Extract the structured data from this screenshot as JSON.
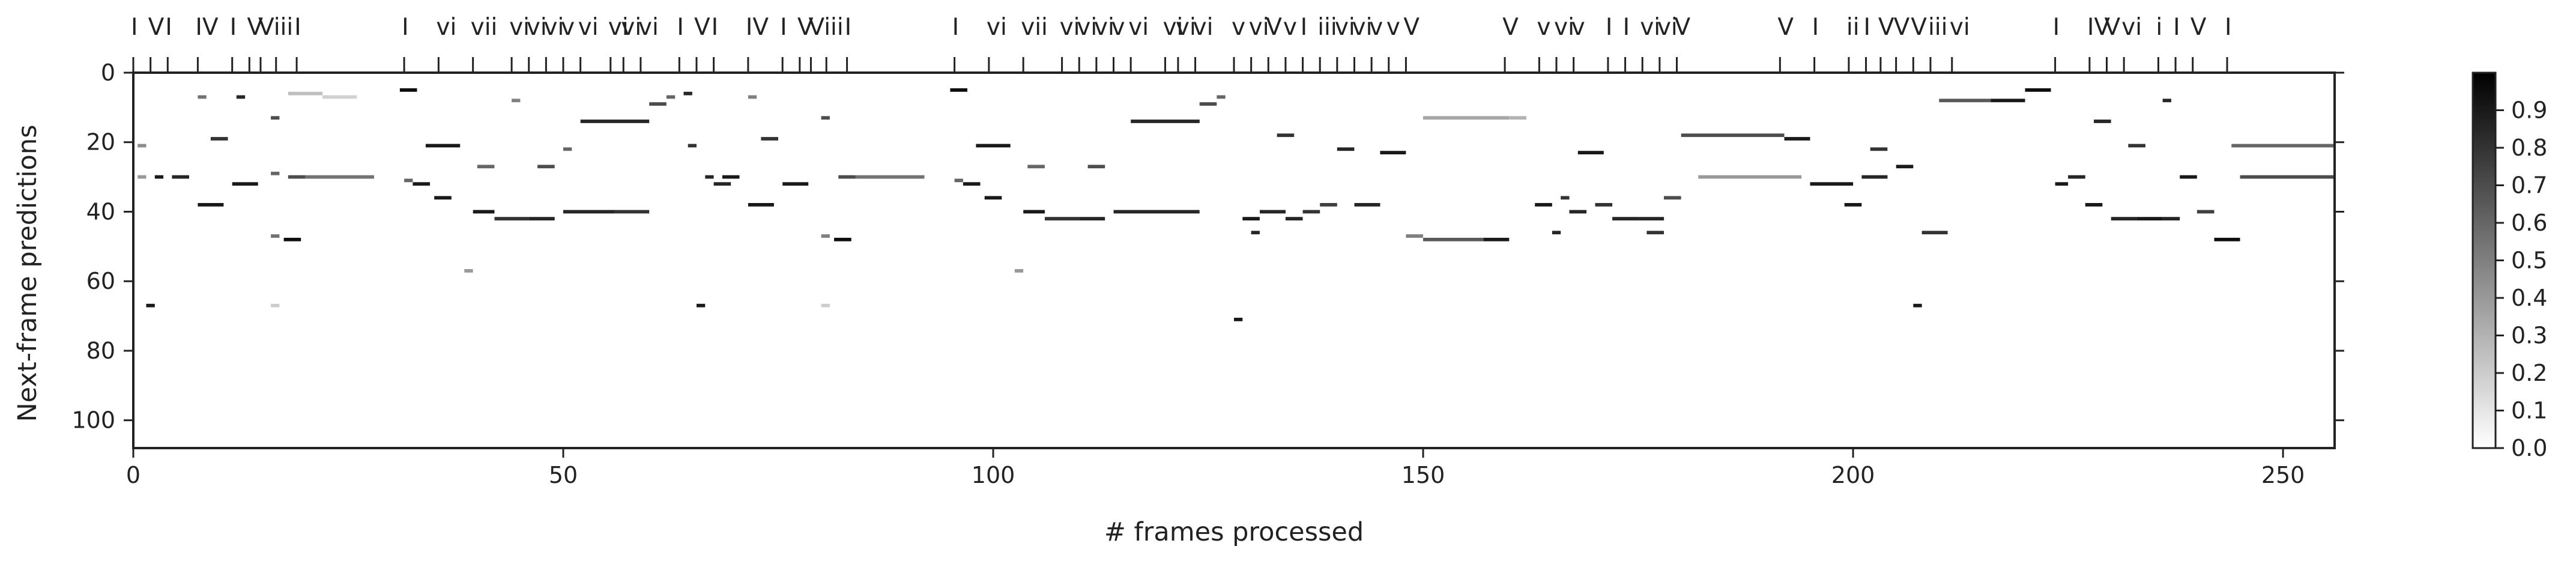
{
  "chart_data": {
    "type": "heatmap",
    "xlabel": "# frames processed",
    "ylabel": "Next-frame predictions",
    "xlim": [
      0,
      256
    ],
    "ylim": [
      0,
      108
    ],
    "y_inverted": true,
    "grid": false,
    "x_ticks": [
      {
        "value": 0,
        "label": "0"
      },
      {
        "value": 50,
        "label": "50"
      },
      {
        "value": 100,
        "label": "100"
      },
      {
        "value": 150,
        "label": "150"
      },
      {
        "value": 200,
        "label": "200"
      },
      {
        "value": 250,
        "label": "250"
      }
    ],
    "y_ticks": [
      {
        "value": 0,
        "label": "0"
      },
      {
        "value": 20,
        "label": "20"
      },
      {
        "value": 40,
        "label": "40"
      },
      {
        "value": 60,
        "label": "60"
      },
      {
        "value": 80,
        "label": "80"
      },
      {
        "value": 100,
        "label": "100"
      }
    ],
    "colormap": {
      "low": "#ffffff",
      "high": "#000000",
      "range": [
        0.0,
        1.0
      ]
    },
    "colorbar_ticks": [
      {
        "value": 0.0,
        "label": "0.0"
      },
      {
        "value": 0.1,
        "label": "0.1"
      },
      {
        "value": 0.2,
        "label": "0.2"
      },
      {
        "value": 0.3,
        "label": "0.3"
      },
      {
        "value": 0.4,
        "label": "0.4"
      },
      {
        "value": 0.5,
        "label": "0.5"
      },
      {
        "value": 0.6,
        "label": "0.6"
      },
      {
        "value": 0.7,
        "label": "0.7"
      },
      {
        "value": 0.8,
        "label": "0.8"
      },
      {
        "value": 0.9,
        "label": "0.9"
      }
    ],
    "chord_annotations": [
      {
        "frame": 0,
        "label": "I"
      },
      {
        "frame": 2,
        "label": "V"
      },
      {
        "frame": 4,
        "label": "I"
      },
      {
        "frame": 7.5,
        "label": "IV"
      },
      {
        "frame": 11.5,
        "label": "I"
      },
      {
        "frame": 13.5,
        "label": "V"
      },
      {
        "frame": 14.8,
        "label": "V"
      },
      {
        "frame": 16.6,
        "label": "iii"
      },
      {
        "frame": 19,
        "label": "I"
      },
      {
        "frame": 31.5,
        "label": "I"
      },
      {
        "frame": 35.5,
        "label": "vi"
      },
      {
        "frame": 39.5,
        "label": "vii"
      },
      {
        "frame": 44,
        "label": "vi"
      },
      {
        "frame": 46,
        "label": "vi"
      },
      {
        "frame": 48,
        "label": "vi"
      },
      {
        "frame": 50,
        "label": "v"
      },
      {
        "frame": 52,
        "label": "vi"
      },
      {
        "frame": 55.5,
        "label": "vi"
      },
      {
        "frame": 57,
        "label": "vi"
      },
      {
        "frame": 59,
        "label": "vi"
      },
      {
        "frame": 63.5,
        "label": "I"
      },
      {
        "frame": 65.5,
        "label": "V"
      },
      {
        "frame": 67.5,
        "label": "I"
      },
      {
        "frame": 71.5,
        "label": "IV"
      },
      {
        "frame": 75.5,
        "label": "I"
      },
      {
        "frame": 77.5,
        "label": "V"
      },
      {
        "frame": 78.8,
        "label": "V"
      },
      {
        "frame": 80.6,
        "label": "iii"
      },
      {
        "frame": 83,
        "label": "I"
      },
      {
        "frame": 95.5,
        "label": "I"
      },
      {
        "frame": 99.5,
        "label": "vi"
      },
      {
        "frame": 103.5,
        "label": "vii"
      },
      {
        "frame": 108,
        "label": "vi"
      },
      {
        "frame": 110,
        "label": "vi"
      },
      {
        "frame": 112,
        "label": "vi"
      },
      {
        "frame": 114,
        "label": "v"
      },
      {
        "frame": 116,
        "label": "vi"
      },
      {
        "frame": 120,
        "label": "vi"
      },
      {
        "frame": 121.5,
        "label": "vi"
      },
      {
        "frame": 123.5,
        "label": "vi"
      },
      {
        "frame": 128,
        "label": "v"
      },
      {
        "frame": 130,
        "label": "vi"
      },
      {
        "frame": 132,
        "label": "V"
      },
      {
        "frame": 134,
        "label": "v"
      },
      {
        "frame": 136,
        "label": "I"
      },
      {
        "frame": 138,
        "label": "iii"
      },
      {
        "frame": 140,
        "label": "vi"
      },
      {
        "frame": 142,
        "label": "vi"
      },
      {
        "frame": 144,
        "label": "v"
      },
      {
        "frame": 146,
        "label": "v"
      },
      {
        "frame": 148,
        "label": "V"
      },
      {
        "frame": 159.5,
        "label": "V"
      },
      {
        "frame": 163.5,
        "label": "v"
      },
      {
        "frame": 165.5,
        "label": "vi"
      },
      {
        "frame": 167.5,
        "label": "v"
      },
      {
        "frame": 171.5,
        "label": "I"
      },
      {
        "frame": 173.5,
        "label": "I"
      },
      {
        "frame": 175.5,
        "label": "vi"
      },
      {
        "frame": 177.5,
        "label": "vi"
      },
      {
        "frame": 179.5,
        "label": "V"
      },
      {
        "frame": 191.5,
        "label": "V"
      },
      {
        "frame": 195.5,
        "label": "I"
      },
      {
        "frame": 199.5,
        "label": "ii"
      },
      {
        "frame": 201.5,
        "label": "I"
      },
      {
        "frame": 203.2,
        "label": "V"
      },
      {
        "frame": 205,
        "label": "V"
      },
      {
        "frame": 207,
        "label": "V"
      },
      {
        "frame": 209,
        "label": "iii"
      },
      {
        "frame": 211.5,
        "label": "vi"
      },
      {
        "frame": 223.5,
        "label": "I"
      },
      {
        "frame": 227.5,
        "label": "IV"
      },
      {
        "frame": 229.5,
        "label": "V"
      },
      {
        "frame": 231.5,
        "label": "vi"
      },
      {
        "frame": 235.5,
        "label": "i"
      },
      {
        "frame": 237.5,
        "label": "I"
      },
      {
        "frame": 239.5,
        "label": "V"
      },
      {
        "frame": 243.5,
        "label": "I"
      }
    ],
    "prediction_segments": [
      {
        "x0": 31,
        "x1": 33,
        "y": 5,
        "v": 0.95
      },
      {
        "x0": 18,
        "x1": 22,
        "y": 6,
        "v": 0.25
      },
      {
        "x0": 22,
        "x1": 26,
        "y": 7,
        "v": 0.18
      },
      {
        "x0": 12,
        "x1": 13,
        "y": 7,
        "v": 0.85
      },
      {
        "x0": 7.5,
        "x1": 8.5,
        "y": 7,
        "v": 0.55
      },
      {
        "x0": 16,
        "x1": 17,
        "y": 13,
        "v": 0.7
      },
      {
        "x0": 9,
        "x1": 11,
        "y": 19,
        "v": 0.8
      },
      {
        "x0": 0.5,
        "x1": 1.5,
        "y": 21,
        "v": 0.45
      },
      {
        "x0": 0.5,
        "x1": 1.5,
        "y": 30,
        "v": 0.4
      },
      {
        "x0": 2.5,
        "x1": 3.5,
        "y": 30,
        "v": 0.9
      },
      {
        "x0": 4.5,
        "x1": 6.5,
        "y": 30,
        "v": 0.85
      },
      {
        "x0": 18,
        "x1": 20,
        "y": 30,
        "v": 0.7
      },
      {
        "x0": 20,
        "x1": 28,
        "y": 30,
        "v": 0.55
      },
      {
        "x0": 11.5,
        "x1": 14.5,
        "y": 32,
        "v": 0.9
      },
      {
        "x0": 16,
        "x1": 17,
        "y": 29,
        "v": 0.6
      },
      {
        "x0": 7.5,
        "x1": 10.5,
        "y": 38,
        "v": 0.9
      },
      {
        "x0": 16,
        "x1": 17,
        "y": 47,
        "v": 0.55
      },
      {
        "x0": 17.5,
        "x1": 19.5,
        "y": 48,
        "v": 0.95
      },
      {
        "x0": 1.5,
        "x1": 2.5,
        "y": 67,
        "v": 0.9
      },
      {
        "x0": 16,
        "x1": 17,
        "y": 67,
        "v": 0.2
      },
      {
        "x0": 31.5,
        "x1": 32.5,
        "y": 31,
        "v": 0.6
      },
      {
        "x0": 32.5,
        "x1": 34.5,
        "y": 32,
        "v": 0.9
      },
      {
        "x0": 34,
        "x1": 38,
        "y": 21,
        "v": 0.9
      },
      {
        "x0": 35,
        "x1": 37,
        "y": 36,
        "v": 0.9
      },
      {
        "x0": 39.5,
        "x1": 42,
        "y": 40,
        "v": 0.9
      },
      {
        "x0": 40,
        "x1": 42,
        "y": 27,
        "v": 0.6
      },
      {
        "x0": 38.5,
        "x1": 39.5,
        "y": 57,
        "v": 0.4
      },
      {
        "x0": 42,
        "x1": 46,
        "y": 42,
        "v": 0.8
      },
      {
        "x0": 44,
        "x1": 45,
        "y": 8,
        "v": 0.5
      },
      {
        "x0": 46,
        "x1": 49,
        "y": 42,
        "v": 0.85
      },
      {
        "x0": 47,
        "x1": 49,
        "y": 27,
        "v": 0.7
      },
      {
        "x0": 50,
        "x1": 56,
        "y": 40,
        "v": 0.85
      },
      {
        "x0": 56,
        "x1": 60,
        "y": 40,
        "v": 0.8
      },
      {
        "x0": 52,
        "x1": 56,
        "y": 14,
        "v": 0.85
      },
      {
        "x0": 56,
        "x1": 60,
        "y": 14,
        "v": 0.85
      },
      {
        "x0": 50,
        "x1": 51,
        "y": 22,
        "v": 0.6
      },
      {
        "x0": 60,
        "x1": 62,
        "y": 9,
        "v": 0.7
      },
      {
        "x0": 62,
        "x1": 63,
        "y": 7,
        "v": 0.6
      },
      {
        "x0": 64,
        "x1": 65,
        "y": 6,
        "v": 0.85
      },
      {
        "x0": 64.5,
        "x1": 65.5,
        "y": 21,
        "v": 0.8
      },
      {
        "x0": 65.5,
        "x1": 66.5,
        "y": 67,
        "v": 0.9
      },
      {
        "x0": 66.5,
        "x1": 67.5,
        "y": 30,
        "v": 0.85
      },
      {
        "x0": 68.5,
        "x1": 70.5,
        "y": 30,
        "v": 0.9
      },
      {
        "x0": 67.5,
        "x1": 69.5,
        "y": 32,
        "v": 0.85
      },
      {
        "x0": 71.5,
        "x1": 74.5,
        "y": 38,
        "v": 0.9
      },
      {
        "x0": 71.5,
        "x1": 72.5,
        "y": 7,
        "v": 0.5
      },
      {
        "x0": 73,
        "x1": 75,
        "y": 19,
        "v": 0.8
      },
      {
        "x0": 75.5,
        "x1": 78.5,
        "y": 32,
        "v": 0.9
      },
      {
        "x0": 80,
        "x1": 81,
        "y": 13,
        "v": 0.7
      },
      {
        "x0": 80,
        "x1": 81,
        "y": 47,
        "v": 0.5
      },
      {
        "x0": 81.5,
        "x1": 83.5,
        "y": 48,
        "v": 0.95
      },
      {
        "x0": 82,
        "x1": 84,
        "y": 30,
        "v": 0.7
      },
      {
        "x0": 84,
        "x1": 92,
        "y": 30,
        "v": 0.55
      },
      {
        "x0": 80,
        "x1": 81,
        "y": 67,
        "v": 0.2
      },
      {
        "x0": 95,
        "x1": 97,
        "y": 5,
        "v": 0.95
      },
      {
        "x0": 95.5,
        "x1": 96.5,
        "y": 31,
        "v": 0.6
      },
      {
        "x0": 96.5,
        "x1": 98.5,
        "y": 32,
        "v": 0.9
      },
      {
        "x0": 98,
        "x1": 102,
        "y": 21,
        "v": 0.9
      },
      {
        "x0": 99,
        "x1": 101,
        "y": 36,
        "v": 0.9
      },
      {
        "x0": 103.5,
        "x1": 106,
        "y": 40,
        "v": 0.9
      },
      {
        "x0": 104,
        "x1": 106,
        "y": 27,
        "v": 0.6
      },
      {
        "x0": 102.5,
        "x1": 103.5,
        "y": 57,
        "v": 0.4
      },
      {
        "x0": 106,
        "x1": 110,
        "y": 42,
        "v": 0.8
      },
      {
        "x0": 110,
        "x1": 113,
        "y": 42,
        "v": 0.85
      },
      {
        "x0": 111,
        "x1": 113,
        "y": 27,
        "v": 0.7
      },
      {
        "x0": 114,
        "x1": 124,
        "y": 40,
        "v": 0.85
      },
      {
        "x0": 116,
        "x1": 124,
        "y": 14,
        "v": 0.85
      },
      {
        "x0": 124,
        "x1": 126,
        "y": 9,
        "v": 0.7
      },
      {
        "x0": 126,
        "x1": 127,
        "y": 7,
        "v": 0.6
      },
      {
        "x0": 128,
        "x1": 129,
        "y": 71,
        "v": 0.9
      },
      {
        "x0": 129,
        "x1": 131,
        "y": 42,
        "v": 0.9
      },
      {
        "x0": 130,
        "x1": 131,
        "y": 46,
        "v": 0.85
      },
      {
        "x0": 131,
        "x1": 134,
        "y": 40,
        "v": 0.85
      },
      {
        "x0": 133,
        "x1": 135,
        "y": 18,
        "v": 0.8
      },
      {
        "x0": 134,
        "x1": 136,
        "y": 42,
        "v": 0.85
      },
      {
        "x0": 136,
        "x1": 138,
        "y": 40,
        "v": 0.8
      },
      {
        "x0": 138,
        "x1": 140,
        "y": 38,
        "v": 0.75
      },
      {
        "x0": 140,
        "x1": 142,
        "y": 22,
        "v": 0.85
      },
      {
        "x0": 142,
        "x1": 145,
        "y": 38,
        "v": 0.85
      },
      {
        "x0": 145,
        "x1": 148,
        "y": 23,
        "v": 0.9
      },
      {
        "x0": 148,
        "x1": 150,
        "y": 47,
        "v": 0.5
      },
      {
        "x0": 150,
        "x1": 157,
        "y": 48,
        "v": 0.65
      },
      {
        "x0": 157,
        "x1": 160,
        "y": 48,
        "v": 0.9
      },
      {
        "x0": 150,
        "x1": 160,
        "y": 13,
        "v": 0.35
      },
      {
        "x0": 160,
        "x1": 162,
        "y": 13,
        "v": 0.3
      },
      {
        "x0": 163,
        "x1": 165,
        "y": 38,
        "v": 0.9
      },
      {
        "x0": 165,
        "x1": 166,
        "y": 46,
        "v": 0.85
      },
      {
        "x0": 166,
        "x1": 167,
        "y": 36,
        "v": 0.8
      },
      {
        "x0": 167,
        "x1": 169,
        "y": 40,
        "v": 0.85
      },
      {
        "x0": 168,
        "x1": 171,
        "y": 23,
        "v": 0.9
      },
      {
        "x0": 170,
        "x1": 172,
        "y": 38,
        "v": 0.8
      },
      {
        "x0": 172,
        "x1": 175,
        "y": 42,
        "v": 0.85
      },
      {
        "x0": 175,
        "x1": 178,
        "y": 42,
        "v": 0.85
      },
      {
        "x0": 176,
        "x1": 178,
        "y": 46,
        "v": 0.8
      },
      {
        "x0": 178,
        "x1": 180,
        "y": 36,
        "v": 0.7
      },
      {
        "x0": 180,
        "x1": 192,
        "y": 18,
        "v": 0.7
      },
      {
        "x0": 182,
        "x1": 194,
        "y": 30,
        "v": 0.4
      },
      {
        "x0": 192,
        "x1": 195,
        "y": 19,
        "v": 0.9
      },
      {
        "x0": 195,
        "x1": 200,
        "y": 32,
        "v": 0.9
      },
      {
        "x0": 199,
        "x1": 201,
        "y": 38,
        "v": 0.9
      },
      {
        "x0": 201,
        "x1": 204,
        "y": 30,
        "v": 0.85
      },
      {
        "x0": 202,
        "x1": 204,
        "y": 22,
        "v": 0.8
      },
      {
        "x0": 205,
        "x1": 207,
        "y": 27,
        "v": 0.9
      },
      {
        "x0": 207,
        "x1": 208,
        "y": 67,
        "v": 0.9
      },
      {
        "x0": 208,
        "x1": 211,
        "y": 46,
        "v": 0.8
      },
      {
        "x0": 210,
        "x1": 216,
        "y": 8,
        "v": 0.65
      },
      {
        "x0": 216,
        "x1": 220,
        "y": 8,
        "v": 0.9
      },
      {
        "x0": 220,
        "x1": 223,
        "y": 5,
        "v": 0.95
      },
      {
        "x0": 223.5,
        "x1": 225,
        "y": 32,
        "v": 0.9
      },
      {
        "x0": 225,
        "x1": 227,
        "y": 30,
        "v": 0.85
      },
      {
        "x0": 227,
        "x1": 229,
        "y": 38,
        "v": 0.9
      },
      {
        "x0": 228,
        "x1": 230,
        "y": 14,
        "v": 0.85
      },
      {
        "x0": 230,
        "x1": 233,
        "y": 42,
        "v": 0.85
      },
      {
        "x0": 232,
        "x1": 234,
        "y": 21,
        "v": 0.8
      },
      {
        "x0": 233,
        "x1": 236,
        "y": 42,
        "v": 0.9
      },
      {
        "x0": 236,
        "x1": 237,
        "y": 8,
        "v": 0.85
      },
      {
        "x0": 236,
        "x1": 238,
        "y": 42,
        "v": 0.85
      },
      {
        "x0": 238,
        "x1": 240,
        "y": 30,
        "v": 0.9
      },
      {
        "x0": 240,
        "x1": 242,
        "y": 40,
        "v": 0.75
      },
      {
        "x0": 242,
        "x1": 245,
        "y": 48,
        "v": 0.95
      },
      {
        "x0": 244,
        "x1": 256,
        "y": 21,
        "v": 0.6
      },
      {
        "x0": 245,
        "x1": 256,
        "y": 30,
        "v": 0.7
      }
    ]
  }
}
